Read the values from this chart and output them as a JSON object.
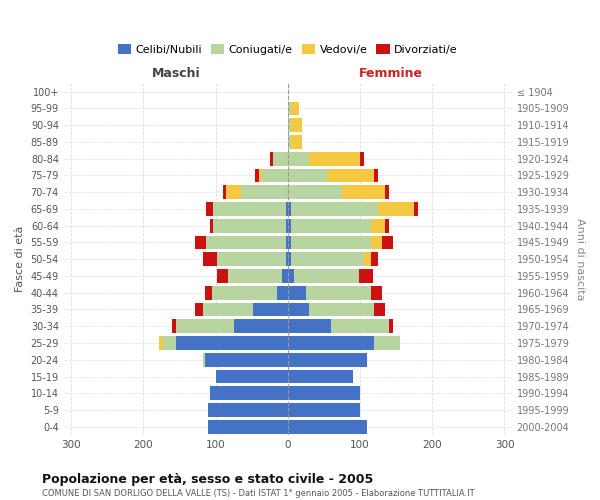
{
  "age_groups": [
    "0-4",
    "5-9",
    "10-14",
    "15-19",
    "20-24",
    "25-29",
    "30-34",
    "35-39",
    "40-44",
    "45-49",
    "50-54",
    "55-59",
    "60-64",
    "65-69",
    "70-74",
    "75-79",
    "80-84",
    "85-89",
    "90-94",
    "95-99",
    "100+"
  ],
  "birth_years": [
    "2000-2004",
    "1995-1999",
    "1990-1994",
    "1985-1989",
    "1980-1984",
    "1975-1979",
    "1970-1974",
    "1965-1969",
    "1960-1964",
    "1955-1959",
    "1950-1954",
    "1945-1949",
    "1940-1944",
    "1935-1939",
    "1930-1934",
    "1925-1929",
    "1920-1924",
    "1915-1919",
    "1910-1914",
    "1905-1909",
    "≤ 1904"
  ],
  "male": {
    "celibi": [
      110,
      110,
      108,
      100,
      115,
      155,
      75,
      48,
      15,
      8,
      3,
      3,
      3,
      3,
      0,
      0,
      0,
      0,
      0,
      0,
      0
    ],
    "coniugati": [
      0,
      0,
      0,
      0,
      2,
      18,
      80,
      70,
      90,
      75,
      95,
      110,
      100,
      100,
      65,
      35,
      20,
      0,
      0,
      0,
      0
    ],
    "vedovi": [
      0,
      0,
      0,
      0,
      0,
      5,
      0,
      0,
      0,
      0,
      0,
      0,
      0,
      0,
      20,
      5,
      0,
      0,
      0,
      0,
      0
    ],
    "divorziati": [
      0,
      0,
      0,
      0,
      0,
      0,
      5,
      10,
      10,
      15,
      20,
      15,
      5,
      10,
      5,
      5,
      5,
      0,
      0,
      0,
      0
    ]
  },
  "female": {
    "nubili": [
      110,
      100,
      100,
      90,
      110,
      120,
      60,
      30,
      25,
      8,
      5,
      5,
      5,
      5,
      0,
      0,
      0,
      0,
      0,
      0,
      0
    ],
    "coniugate": [
      0,
      0,
      0,
      0,
      0,
      35,
      80,
      90,
      90,
      90,
      100,
      110,
      110,
      120,
      75,
      55,
      30,
      5,
      5,
      5,
      0
    ],
    "vedove": [
      0,
      0,
      0,
      0,
      0,
      0,
      0,
      0,
      0,
      0,
      10,
      15,
      20,
      50,
      60,
      65,
      70,
      15,
      15,
      10,
      0
    ],
    "divorziate": [
      0,
      0,
      0,
      0,
      0,
      0,
      5,
      15,
      15,
      20,
      10,
      15,
      5,
      5,
      5,
      5,
      5,
      0,
      0,
      0,
      0
    ]
  },
  "colors": {
    "celibi": "#4472c4",
    "coniugati": "#b8d4a0",
    "vedovi": "#f5c842",
    "divorziati": "#cc1111"
  },
  "xlim": 310,
  "title": "Popolazione per età, sesso e stato civile - 2005",
  "subtitle": "COMUNE DI SAN DORLIGO DELLA VALLE (TS) - Dati ISTAT 1° gennaio 2005 - Elaborazione TUTTITALIA.IT",
  "ylabel_left": "Fasce di età",
  "ylabel_right": "Anni di nascita",
  "legend_labels": [
    "Celibi/Nubili",
    "Coniugati/e",
    "Vedovi/e",
    "Divorziati/e"
  ]
}
